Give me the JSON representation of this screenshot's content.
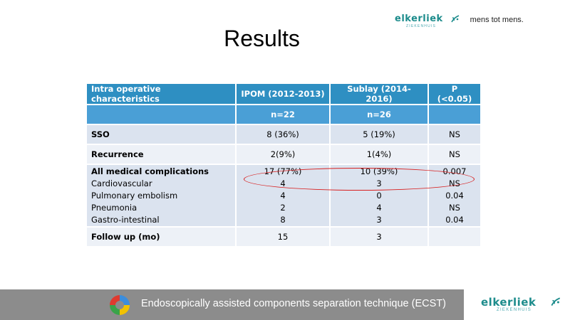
{
  "logo": {
    "brand": "elkerliek",
    "sub": "ZIEKENHUIS",
    "tagline": "mens tot mens.",
    "color": "#1d8c8c"
  },
  "slide": {
    "title": "Results"
  },
  "table": {
    "header": [
      "Intra operative characteristics",
      "IPOM (2012-2013)",
      "Sublay (2014-2016)",
      "P (<0.05)"
    ],
    "subheader": [
      "",
      "n=22",
      "n=26",
      ""
    ],
    "rows": [
      {
        "label": "SSO",
        "ipom": "8 (36%)",
        "sublay": "5 (19%)",
        "p": "NS"
      },
      {
        "label": "Recurrence",
        "ipom": "2(9%)",
        "sublay": "1(4%)",
        "p": "NS"
      },
      {
        "label": "All medical complications",
        "ipom": "17 (77%)",
        "sublay": "10 (39%)",
        "p": "0.007"
      }
    ],
    "subrows": [
      {
        "label": "Cardiovascular",
        "ipom": "4",
        "sublay": "3",
        "p": "NS"
      },
      {
        "label": "Pulmonary embolism",
        "ipom": "4",
        "sublay": "0",
        "p": "0.04"
      },
      {
        "label": "Pneumonia",
        "ipom": "2",
        "sublay": "4",
        "p": "NS"
      },
      {
        "label": "Gastro-intestinal",
        "ipom": "8",
        "sublay": "3",
        "p": "0.04"
      }
    ],
    "followup": {
      "label": "Follow up (mo)",
      "ipom": "15",
      "sublay": "3",
      "p": ""
    }
  },
  "footer": {
    "text": "Endoscopically assisted components separation technique (ECST)"
  },
  "colors": {
    "header": "#2e8fc2",
    "subheader": "#4a9fd6",
    "highlight": "#d81f1f",
    "footer": "#8c8c8c"
  }
}
